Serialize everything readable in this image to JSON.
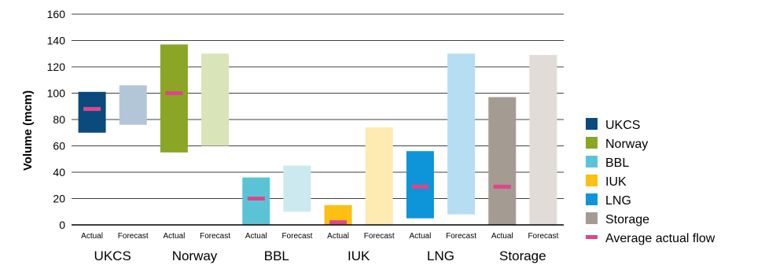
{
  "chart_data": {
    "type": "bar",
    "ylabel": "Volume (mcm)",
    "ylim": [
      0,
      160
    ],
    "yticks": [
      0,
      20,
      40,
      60,
      80,
      100,
      120,
      140,
      160
    ],
    "grid": true,
    "legend_position": "right",
    "sub_labels": [
      "Actual",
      "Forecast"
    ],
    "avg_label": "Average actual flow",
    "avg_color": "#e0458a",
    "groups": [
      {
        "name": "UKCS",
        "actual": {
          "min": 70,
          "max": 101,
          "avg": 88
        },
        "forecast": {
          "min": 76,
          "max": 106
        },
        "color": "#0b4a7d",
        "forecast_color": "#b3c6d8"
      },
      {
        "name": "Norway",
        "actual": {
          "min": 55,
          "max": 137,
          "avg": 100
        },
        "forecast": {
          "min": 60,
          "max": 130
        },
        "color": "#8aa624",
        "forecast_color": "#d9e4b9"
      },
      {
        "name": "BBL",
        "actual": {
          "min": 0,
          "max": 36,
          "avg": 20
        },
        "forecast": {
          "min": 10,
          "max": 45
        },
        "color": "#5ac4d6",
        "forecast_color": "#cce9ef"
      },
      {
        "name": "IUK",
        "actual": {
          "min": 0,
          "max": 15,
          "avg": 2
        },
        "forecast": {
          "min": 0,
          "max": 74
        },
        "color": "#fbc011",
        "forecast_color": "#fdebb1"
      },
      {
        "name": "LNG",
        "actual": {
          "min": 5,
          "max": 56,
          "avg": 29
        },
        "forecast": {
          "min": 8,
          "max": 130
        },
        "color": "#0e94d8",
        "forecast_color": "#b6ddf2"
      },
      {
        "name": "Storage",
        "actual": {
          "min": 0,
          "max": 97,
          "avg": 29
        },
        "forecast": {
          "min": 0,
          "max": 129
        },
        "color": "#a49b92",
        "forecast_color": "#e1dcd8"
      }
    ]
  }
}
